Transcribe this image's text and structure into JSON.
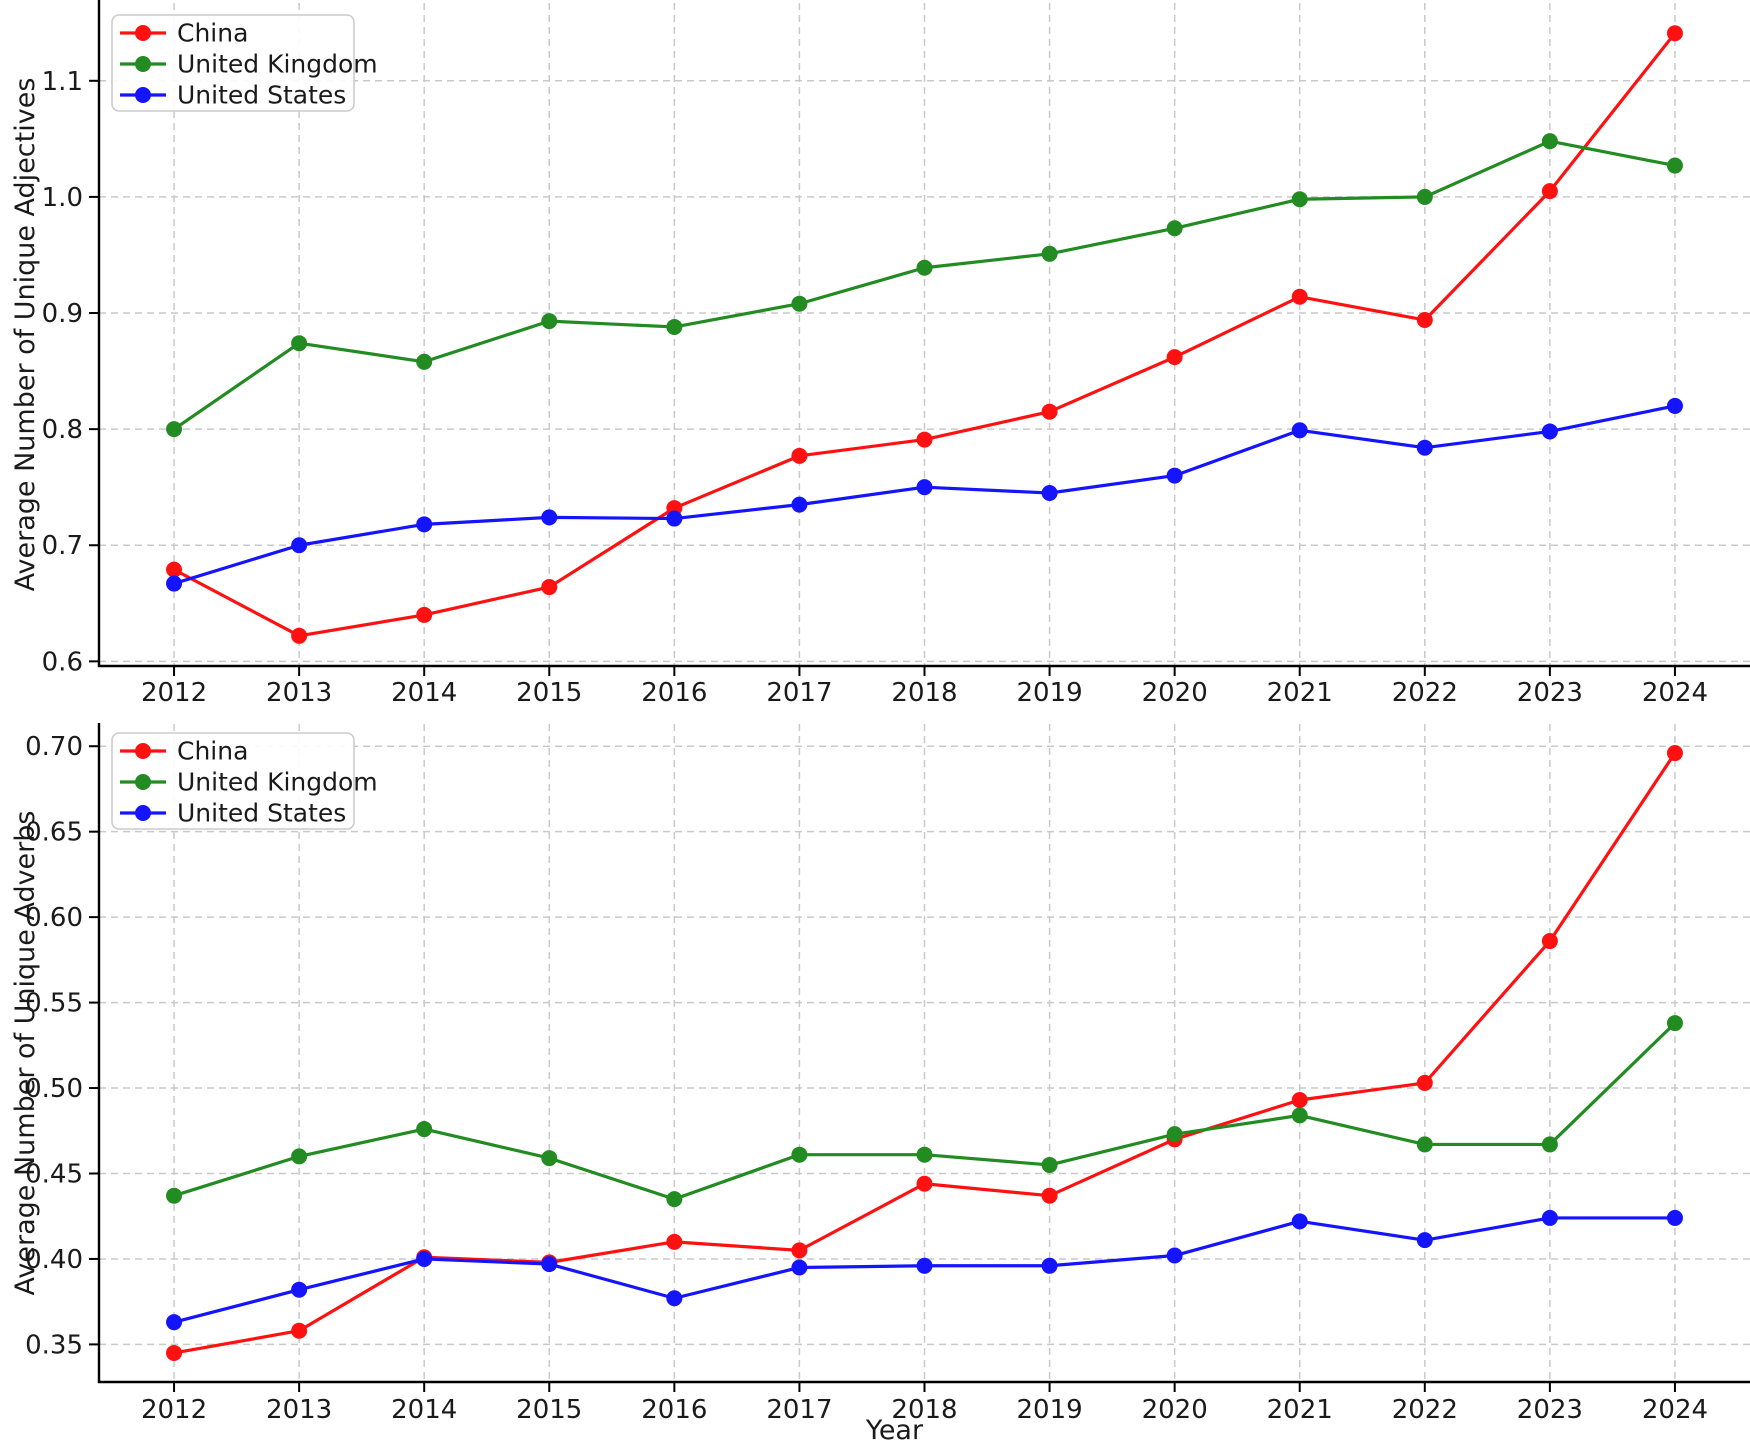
{
  "page": {
    "background": "#ffffff",
    "text_color": "#1a1a1a",
    "grid_color": "#c9c9c9",
    "spine_color": "#000000"
  },
  "legend": {
    "entries": [
      "China",
      "United Kingdom",
      "United States"
    ]
  },
  "chart_data": [
    {
      "type": "line",
      "title": "",
      "xlabel": "",
      "ylabel": "Average Number of Unique Adjectives",
      "x": [
        2012,
        2013,
        2014,
        2015,
        2016,
        2017,
        2018,
        2019,
        2020,
        2021,
        2022,
        2023,
        2024
      ],
      "xtick_labels": [
        "2012",
        "2013",
        "2014",
        "2015",
        "2016",
        "2017",
        "2018",
        "2019",
        "2020",
        "2021",
        "2022",
        "2023",
        "2024"
      ],
      "xlim": [
        2011.4,
        2024.6
      ],
      "ylim": [
        0.596,
        1.167
      ],
      "yticks": [
        0.6,
        0.7,
        0.8,
        0.9,
        1.0,
        1.1
      ],
      "ytick_labels": [
        "0.6",
        "0.7",
        "0.8",
        "0.9",
        "1.0",
        "1.1"
      ],
      "grid": true,
      "legend_position": "upper left",
      "series": [
        {
          "name": "China",
          "color": "#ff1111",
          "values": [
            0.679,
            0.622,
            0.64,
            0.664,
            0.732,
            0.777,
            0.791,
            0.815,
            0.862,
            0.914,
            0.894,
            1.005,
            1.141
          ]
        },
        {
          "name": "United Kingdom",
          "color": "#228b22",
          "values": [
            0.8,
            0.874,
            0.858,
            0.893,
            0.888,
            0.908,
            0.939,
            0.951,
            0.973,
            0.998,
            1.0,
            1.048,
            1.027
          ]
        },
        {
          "name": "United States",
          "color": "#1414ff",
          "values": [
            0.667,
            0.7,
            0.718,
            0.724,
            0.723,
            0.735,
            0.75,
            0.745,
            0.76,
            0.799,
            0.784,
            0.798,
            0.82
          ]
        }
      ]
    },
    {
      "type": "line",
      "title": "",
      "xlabel": "Year",
      "ylabel": "Average Number of Unique Adverbs",
      "x": [
        2012,
        2013,
        2014,
        2015,
        2016,
        2017,
        2018,
        2019,
        2020,
        2021,
        2022,
        2023,
        2024
      ],
      "xtick_labels": [
        "2012",
        "2013",
        "2014",
        "2015",
        "2016",
        "2017",
        "2018",
        "2019",
        "2020",
        "2021",
        "2022",
        "2023",
        "2024"
      ],
      "xlim": [
        2011.4,
        2024.6
      ],
      "ylim": [
        0.328,
        0.713
      ],
      "yticks": [
        0.35,
        0.4,
        0.45,
        0.5,
        0.55,
        0.6,
        0.65,
        0.7
      ],
      "ytick_labels": [
        "0.35",
        "0.40",
        "0.45",
        "0.50",
        "0.55",
        "0.60",
        "0.65",
        "0.70"
      ],
      "grid": true,
      "legend_position": "upper left",
      "series": [
        {
          "name": "China",
          "color": "#ff1111",
          "values": [
            0.345,
            0.358,
            0.401,
            0.398,
            0.41,
            0.405,
            0.444,
            0.437,
            0.47,
            0.493,
            0.503,
            0.586,
            0.696
          ]
        },
        {
          "name": "United Kingdom",
          "color": "#228b22",
          "values": [
            0.437,
            0.46,
            0.476,
            0.459,
            0.435,
            0.461,
            0.461,
            0.455,
            0.473,
            0.484,
            0.467,
            0.467,
            0.538
          ]
        },
        {
          "name": "United States",
          "color": "#1414ff",
          "values": [
            0.363,
            0.382,
            0.4,
            0.397,
            0.377,
            0.395,
            0.396,
            0.396,
            0.402,
            0.422,
            0.411,
            0.424,
            0.424
          ]
        }
      ]
    }
  ]
}
